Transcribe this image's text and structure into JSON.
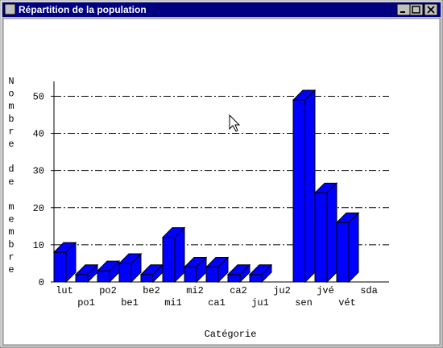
{
  "window_title": "Répartition de la population",
  "chart_data": {
    "type": "bar3d",
    "y_label": "Nombre de membre",
    "x_label": "Catégorie",
    "categories": [
      "lut",
      "po1",
      "po2",
      "be1",
      "be2",
      "mi1",
      "mi2",
      "ca1",
      "ca2",
      "ju1",
      "ju2",
      "sen",
      "jvé",
      "vét",
      "sda"
    ],
    "values": [
      8,
      2,
      3,
      5,
      2,
      12,
      4,
      4,
      2,
      2,
      0,
      49,
      24,
      16,
      0
    ],
    "color": "#0000ff",
    "ylim": [
      0,
      54
    ],
    "yticks": [
      0,
      10,
      20,
      30,
      40,
      50
    ],
    "grid": true
  }
}
